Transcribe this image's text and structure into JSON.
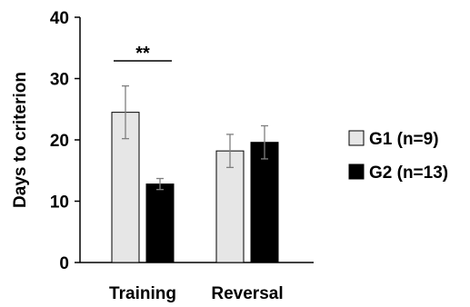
{
  "chart_data": {
    "type": "bar",
    "title": "",
    "xlabel": "",
    "ylabel": "Days to criterion",
    "ylim": [
      0,
      40
    ],
    "yticks": [
      0,
      10,
      20,
      30,
      40
    ],
    "grid": false,
    "legend_position": "right",
    "categories": [
      "Training",
      "Reversal"
    ],
    "series": [
      {
        "name": "G1 (n=9)",
        "color": "#e6e6e6",
        "values": [
          24.5,
          18.2
        ],
        "errors": [
          4.3,
          2.7
        ]
      },
      {
        "name": "G2 (n=13)",
        "color": "#000000",
        "values": [
          12.8,
          19.6
        ],
        "errors": [
          0.9,
          2.7
        ]
      }
    ],
    "annotations": [
      {
        "text": "**",
        "category": "Training"
      }
    ]
  }
}
